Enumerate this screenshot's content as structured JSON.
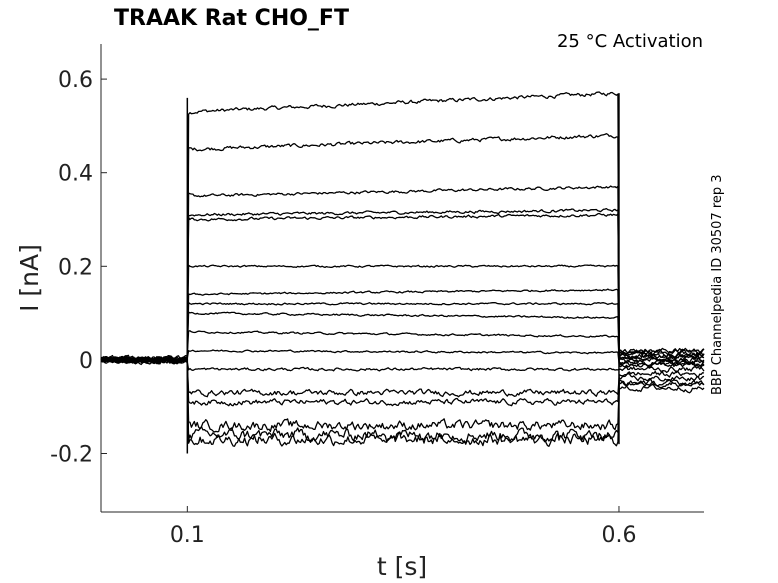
{
  "chart_data": {
    "type": "line",
    "title": "TRAAK  Rat  CHO_FT",
    "subtitle": "25 °C  Activation",
    "side_label": "BBP Channelpedia ID 30507 rep 3",
    "xlabel": "t [s]",
    "ylabel": "I [nA]",
    "xlim": [
      0.0,
      0.6985
    ],
    "ylim": [
      -0.325,
      0.675
    ],
    "xticks": [
      {
        "value": 0.1,
        "label": "0.1"
      },
      {
        "value": 0.6,
        "label": "0.6"
      }
    ],
    "yticks": [
      {
        "value": -0.2,
        "label": "-0.2"
      },
      {
        "value": 0,
        "label": "0"
      },
      {
        "value": 0.2,
        "label": "0.2"
      },
      {
        "value": 0.4,
        "label": "0.4"
      },
      {
        "value": 0.6,
        "label": "0.6"
      }
    ],
    "grid": false,
    "legend": "none",
    "step_start": 0.1,
    "step_end": 0.6,
    "series": [
      {
        "baseline": 0.0,
        "steady": 0.53,
        "end": 0.57,
        "tail": 0.02,
        "noise": 0.004
      },
      {
        "baseline": 0.0,
        "steady": 0.45,
        "end": 0.48,
        "tail": 0.02,
        "noise": 0.004
      },
      {
        "baseline": 0.0,
        "steady": 0.35,
        "end": 0.37,
        "tail": 0.015,
        "noise": 0.003
      },
      {
        "baseline": 0.0,
        "steady": 0.31,
        "end": 0.32,
        "tail": 0.01,
        "noise": 0.003
      },
      {
        "baseline": 0.0,
        "steady": 0.3,
        "end": 0.31,
        "tail": 0.01,
        "noise": 0.003
      },
      {
        "baseline": 0.0,
        "steady": 0.2,
        "end": 0.2,
        "tail": 0.005,
        "noise": 0.002
      },
      {
        "baseline": 0.0,
        "steady": 0.14,
        "end": 0.15,
        "tail": 0.0,
        "noise": 0.002
      },
      {
        "baseline": 0.0,
        "steady": 0.12,
        "end": 0.12,
        "tail": 0.0,
        "noise": 0.002
      },
      {
        "baseline": 0.0,
        "steady": 0.1,
        "end": 0.09,
        "tail": -0.005,
        "noise": 0.002
      },
      {
        "baseline": 0.0,
        "steady": 0.06,
        "end": 0.05,
        "tail": -0.01,
        "noise": 0.002
      },
      {
        "baseline": 0.0,
        "steady": 0.02,
        "end": 0.015,
        "tail": -0.01,
        "noise": 0.002
      },
      {
        "baseline": 0.0,
        "steady": -0.02,
        "end": -0.02,
        "tail": -0.02,
        "noise": 0.003
      },
      {
        "baseline": 0.0,
        "steady": -0.07,
        "end": -0.07,
        "tail": -0.03,
        "noise": 0.006
      },
      {
        "baseline": 0.0,
        "steady": -0.09,
        "end": -0.09,
        "tail": -0.04,
        "noise": 0.006
      },
      {
        "baseline": 0.0,
        "steady": -0.14,
        "end": -0.14,
        "tail": -0.05,
        "noise": 0.01
      },
      {
        "baseline": 0.0,
        "steady": -0.16,
        "end": -0.16,
        "tail": -0.05,
        "noise": 0.012
      },
      {
        "baseline": 0.0,
        "steady": -0.17,
        "end": -0.17,
        "tail": -0.06,
        "noise": 0.012
      }
    ]
  }
}
